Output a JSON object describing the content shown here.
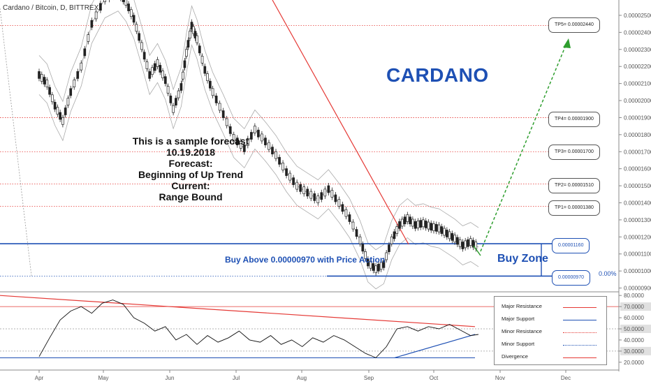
{
  "symbol": "Cardano / Bitcoin, D, BITTREX",
  "title": "CARDANO",
  "forecast_lines": [
    "This is a sample forecast",
    "10.19.2018",
    "Forecast:",
    "Beginning of Up Trend",
    "Current:",
    "Range Bound"
  ],
  "buy_note": "Buy Above 0.00000970 with Price Action",
  "buy_zone_label": "Buy Zone",
  "pct_label": "0.00%",
  "targets": [
    {
      "label": "TP5= 0.00002440",
      "price": 2.44e-05
    },
    {
      "label": "TP4= 0.00001900",
      "price": 1.9e-05
    },
    {
      "label": "TP3= 0.00001700",
      "price": 1.7e-05
    },
    {
      "label": "TP2= 0.00001510",
      "price": 1.51e-05
    },
    {
      "label": "TP1= 0.00001380",
      "price": 1.38e-05
    }
  ],
  "zone": {
    "upper_label": "0.00001160",
    "upper": 1.16e-05,
    "lower_label": "0.00000970",
    "lower": 9.7e-06
  },
  "legend": [
    {
      "name": "Major Resistance",
      "color": "#e53935",
      "style": "solid"
    },
    {
      "name": "Major Support",
      "color": "#1e50b4",
      "style": "solid"
    },
    {
      "name": "Minor Resistance",
      "color": "#e53935",
      "style": "dotted"
    },
    {
      "name": "Minor Support",
      "color": "#1e50b4",
      "style": "dotted"
    },
    {
      "name": "Divergence",
      "color": "#e53935",
      "style": "solid"
    }
  ],
  "colors": {
    "accent": "#1e50b4",
    "resistance": "#e53935",
    "forecast_arrow": "#2e9e2e",
    "candle": "#222222",
    "band": "#aaaaaa"
  },
  "chart_data": {
    "type": "candlestick",
    "x_axis_labels": [
      "Apr",
      "May",
      "Jun",
      "Jul",
      "Aug",
      "Sep",
      "Oct",
      "Nov",
      "Dec"
    ],
    "price_axis": {
      "labels": [
        "0.00002500",
        "0.00002400",
        "0.00002300",
        "0.00002200",
        "0.00002100",
        "0.00002000",
        "0.00001900",
        "0.00001800",
        "0.00001700",
        "0.00001600",
        "0.00001500",
        "0.00001400",
        "0.00001300",
        "0.00001200",
        "0.00001100",
        "0.00001000",
        "0.00000900"
      ],
      "range": [
        8.9e-06,
        2.59e-05
      ]
    },
    "price_series": {
      "months": [
        "Apr",
        "May",
        "Jun",
        "Jul",
        "Aug",
        "Sep",
        "Oct"
      ],
      "points": [
        [
          0.0,
          2.15e-05
        ],
        [
          0.3,
          2.1e-05
        ],
        [
          0.6,
          1.97e-05
        ],
        [
          0.9,
          1.88e-05
        ],
        [
          1.2,
          2.05e-05
        ],
        [
          1.6,
          2.2e-05
        ],
        [
          2.0,
          2.45e-05
        ],
        [
          2.5,
          2.6e-05
        ],
        [
          3.0,
          2.64e-05
        ],
        [
          3.3,
          2.58e-05
        ],
        [
          3.6,
          2.48e-05
        ],
        [
          3.9,
          2.32e-05
        ],
        [
          4.2,
          2.15e-05
        ],
        [
          4.5,
          2.22e-05
        ],
        [
          4.8,
          2.12e-05
        ],
        [
          5.1,
          1.95e-05
        ],
        [
          5.4,
          2.08e-05
        ],
        [
          5.6,
          2.28e-05
        ],
        [
          5.8,
          2.44e-05
        ],
        [
          6.0,
          2.36e-05
        ],
        [
          6.3,
          2.18e-05
        ],
        [
          6.6,
          2.05e-05
        ],
        [
          7.0,
          1.92e-05
        ],
        [
          7.4,
          1.78e-05
        ],
        [
          7.8,
          1.72e-05
        ],
        [
          8.2,
          1.83e-05
        ],
        [
          8.6,
          1.76e-05
        ],
        [
          9.0,
          1.68e-05
        ],
        [
          9.4,
          1.58e-05
        ],
        [
          9.8,
          1.5e-05
        ],
        [
          10.2,
          1.46e-05
        ],
        [
          10.6,
          1.42e-05
        ],
        [
          11.0,
          1.48e-05
        ],
        [
          11.4,
          1.4e-05
        ],
        [
          11.8,
          1.31e-05
        ],
        [
          12.2,
          1.18e-05
        ],
        [
          12.5,
          1.05e-05
        ],
        [
          12.8,
          1.01e-05
        ],
        [
          13.1,
          1.04e-05
        ],
        [
          13.4,
          1.18e-05
        ],
        [
          13.7,
          1.27e-05
        ],
        [
          14.0,
          1.31e-05
        ],
        [
          14.3,
          1.27e-05
        ],
        [
          14.6,
          1.28e-05
        ],
        [
          14.9,
          1.26e-05
        ],
        [
          15.2,
          1.25e-05
        ],
        [
          15.5,
          1.22e-05
        ],
        [
          15.8,
          1.19e-05
        ],
        [
          16.1,
          1.15e-05
        ],
        [
          16.4,
          1.17e-05
        ],
        [
          16.7,
          1.14e-05
        ]
      ]
    },
    "indicator_axis": {
      "labels": [
        "80.0000",
        "70.0000",
        "60.0000",
        "50.0000",
        "40.0000",
        "30.0000",
        "20.0000"
      ],
      "range": [
        18,
        82
      ]
    },
    "indicator_levels": [
      70,
      50,
      30
    ],
    "rsi_series": [
      [
        0.0,
        25
      ],
      [
        0.4,
        42
      ],
      [
        0.8,
        58
      ],
      [
        1.2,
        66
      ],
      [
        1.6,
        70
      ],
      [
        2.0,
        64
      ],
      [
        2.4,
        73
      ],
      [
        2.8,
        76
      ],
      [
        3.2,
        72
      ],
      [
        3.6,
        60
      ],
      [
        4.0,
        55
      ],
      [
        4.4,
        48
      ],
      [
        4.8,
        52
      ],
      [
        5.2,
        40
      ],
      [
        5.6,
        45
      ],
      [
        6.0,
        36
      ],
      [
        6.4,
        44
      ],
      [
        6.8,
        38
      ],
      [
        7.2,
        42
      ],
      [
        7.6,
        48
      ],
      [
        8.0,
        40
      ],
      [
        8.4,
        38
      ],
      [
        8.8,
        44
      ],
      [
        9.2,
        36
      ],
      [
        9.6,
        40
      ],
      [
        10.0,
        34
      ],
      [
        10.4,
        42
      ],
      [
        10.8,
        38
      ],
      [
        11.2,
        44
      ],
      [
        11.6,
        40
      ],
      [
        12.0,
        34
      ],
      [
        12.4,
        28
      ],
      [
        12.8,
        24
      ],
      [
        13.2,
        34
      ],
      [
        13.6,
        50
      ],
      [
        14.0,
        52
      ],
      [
        14.4,
        48
      ],
      [
        14.8,
        52
      ],
      [
        15.2,
        50
      ],
      [
        15.6,
        54
      ],
      [
        16.0,
        49
      ],
      [
        16.4,
        44
      ],
      [
        16.7,
        45
      ]
    ]
  }
}
